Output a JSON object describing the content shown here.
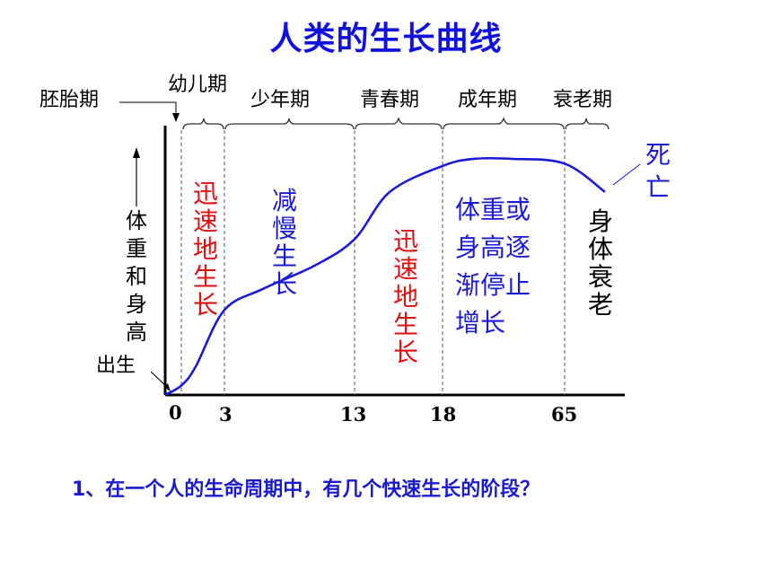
{
  "title": "人类的生长曲线",
  "question": "1、在一个人的生命周期中，有几个快速生长的阶段？",
  "colors": {
    "title": "#1010e0",
    "curve": "#1a1ad8",
    "red": "#e01010",
    "blue": "#1a1ad8",
    "black": "#000000"
  },
  "chart_data": {
    "type": "line",
    "title": "人类的生长曲线",
    "xlabel": "",
    "ylabel": "体重和身高",
    "x_ticks": [
      "0",
      "3",
      "13",
      "18",
      "65"
    ],
    "stages": [
      "胚胎期",
      "幼儿期",
      "少年期",
      "青春期",
      "成年期",
      "衰老期"
    ],
    "series": [
      {
        "x": [
          -1,
          0,
          1,
          3,
          6,
          10,
          13,
          15,
          18,
          30,
          45,
          65,
          70
        ],
        "y": [
          0,
          0.04,
          0.12,
          0.36,
          0.45,
          0.55,
          0.66,
          0.86,
          0.97,
          1.0,
          1.0,
          0.98,
          0.86
        ]
      }
    ],
    "annotations": {
      "birth": "出生",
      "rapid1": "迅速地生长",
      "slow": "减慢生长",
      "rapid2": "迅速地生长",
      "stop": "体重或身高逐渐停止增长",
      "decline": "身体衰老",
      "death": "死亡"
    }
  }
}
